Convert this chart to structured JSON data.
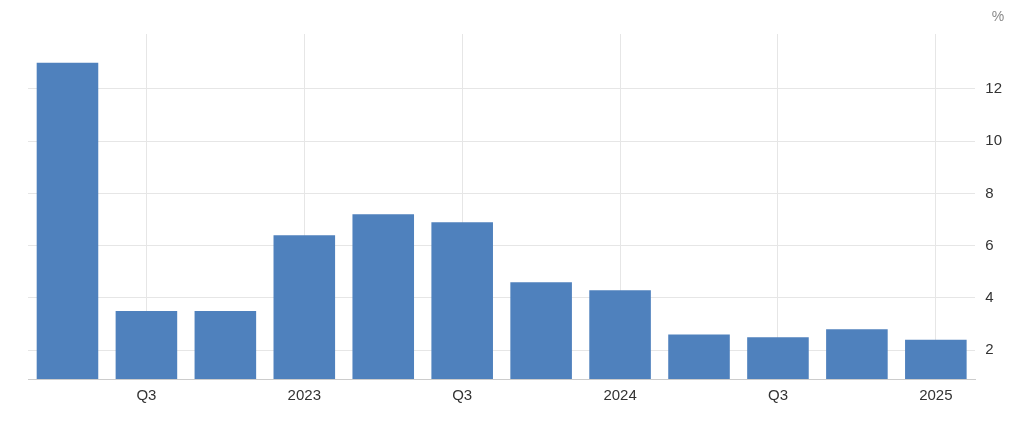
{
  "chart_data": {
    "type": "bar",
    "ylabel": "%",
    "categories": [
      null,
      "Q3",
      null,
      "2023",
      null,
      "Q3",
      null,
      "2024",
      null,
      "Q3",
      null,
      "2025"
    ],
    "values": [
      13.0,
      3.5,
      3.5,
      6.4,
      7.2,
      6.9,
      4.6,
      4.3,
      2.6,
      2.5,
      2.8,
      2.4
    ],
    "color": "#4f81bd",
    "ylim": [
      0.9,
      14.1
    ],
    "yticks": [
      2,
      4,
      6,
      8,
      10,
      12
    ],
    "grid": true
  }
}
